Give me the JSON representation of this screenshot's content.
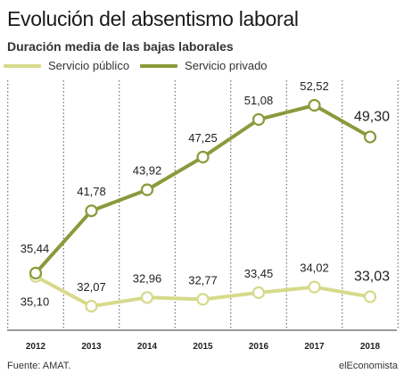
{
  "title": "Evolución del absentismo laboral",
  "subtitle": "Duración media de las bajas laborales",
  "source": "Fuente: AMAT.",
  "brand": "elEconomista",
  "chart_data": {
    "type": "line",
    "categories": [
      "2012",
      "2013",
      "2014",
      "2015",
      "2016",
      "2017",
      "2018"
    ],
    "series": [
      {
        "name": "Servicio público",
        "color": "#d6da8a",
        "values": [
          35.1,
          32.07,
          32.96,
          32.77,
          33.45,
          34.02,
          33.03
        ],
        "labels": [
          "35,10",
          "32,07",
          "32,96",
          "32,77",
          "33,45",
          "34,02",
          "33,03"
        ]
      },
      {
        "name": "Servicio privado",
        "color": "#8a9a3c",
        "values": [
          35.44,
          41.78,
          43.92,
          47.25,
          51.08,
          52.52,
          49.3
        ],
        "labels": [
          "35,44",
          "41,78",
          "43,92",
          "47,25",
          "51,08",
          "52,52",
          "49,30"
        ]
      }
    ],
    "ylim": [
      30,
      54
    ],
    "grid": "vertical-dotted",
    "legend": "top-left"
  }
}
